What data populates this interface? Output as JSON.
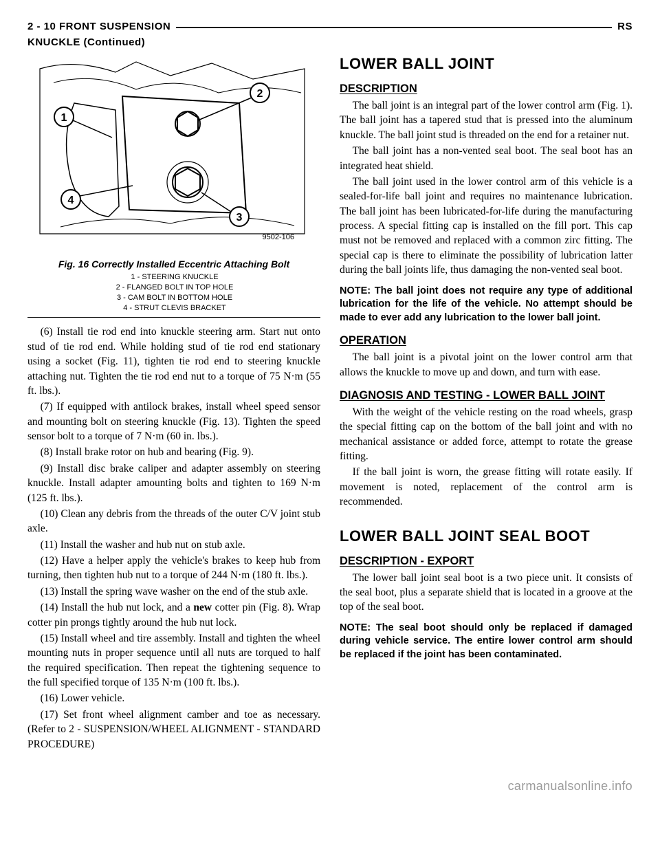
{
  "header": {
    "left": "2 - 10    FRONT SUSPENSION",
    "right": "RS",
    "sub": "KNUCKLE (Continued)"
  },
  "figure": {
    "caption": "Fig. 16 Correctly Installed Eccentric Attaching Bolt",
    "legend": [
      "1 - STEERING KNUCKLE",
      "2 - FLANGED BOLT IN TOP HOLE",
      "3 - CAM BOLT IN BOTTOM HOLE",
      "4 - STRUT CLEVIS BRACKET"
    ],
    "callout_id": "9502-106",
    "labels": {
      "n1": "1",
      "n2": "2",
      "n3": "3",
      "n4": "4"
    }
  },
  "left_steps": [
    "(6) Install tie rod end into knuckle steering arm. Start nut onto stud of tie rod end. While holding stud of tie rod end stationary using a socket (Fig. 11), tighten tie rod end to steering knuckle attaching nut. Tighten the tie rod end nut to a torque of 75 N·m (55 ft. lbs.).",
    "(7) If equipped with antilock brakes, install wheel speed sensor and mounting bolt on steering knuckle (Fig. 13). Tighten the speed sensor bolt to a torque of 7 N·m (60 in. lbs.).",
    "(8) Install brake rotor on hub and bearing (Fig. 9).",
    "(9) Install disc brake caliper and adapter assembly on steering knuckle. Install adapter amounting bolts and tighten to 169 N·m (125 ft. lbs.).",
    "(10) Clean any debris from the threads of the outer C/V joint stub axle.",
    "(11) Install the washer and hub nut on stub axle.",
    "(12) Have a helper apply the vehicle's brakes to keep hub from turning, then tighten hub nut to a torque of 244 N·m (180 ft. lbs.).",
    "(13) Install the spring wave washer on the end of the stub axle.",
    "(14) Install the hub nut lock, and a <b>new</b> cotter pin (Fig. 8). Wrap cotter pin prongs tightly around the hub nut lock.",
    "(15) Install wheel and tire assembly. Install and tighten the wheel mounting nuts in proper sequence until all nuts are torqued to half the required specification. Then repeat the tightening sequence to the full specified torque of 135 N·m (100 ft. lbs.).",
    "(16) Lower vehicle.",
    "(17) Set front wheel alignment camber and toe as necessary. (Refer to 2 - SUSPENSION/WHEEL ALIGNMENT - STANDARD PROCEDURE)"
  ],
  "right": {
    "s1_title": "LOWER BALL JOINT",
    "s1_desc_h": "DESCRIPTION",
    "s1_desc": [
      "The ball joint is an integral part of the lower control arm (Fig. 1). The ball joint has a tapered stud that is pressed into the aluminum knuckle. The ball joint stud is threaded on the end for a retainer nut.",
      "The ball joint has a non-vented seal boot. The seal boot has an integrated heat shield.",
      "The ball joint used in the lower control arm of this vehicle is a sealed-for-life ball joint and requires no maintenance lubrication. The ball joint has been lubricated-for-life during the manufacturing process. A special fitting cap is installed on the fill port. This cap must not be removed and replaced with a common zirc fitting. The special cap is there to eliminate the possibility of lubrication latter during the ball joints life, thus damaging the non-vented seal boot."
    ],
    "s1_note": "NOTE: The ball joint does not require any type of additional lubrication for the life of the vehicle. No attempt should be made to ever add any lubrication to the lower ball joint.",
    "s1_op_h": "OPERATION",
    "s1_op": "The ball joint is a pivotal joint on the lower control arm that allows the knuckle to move up and down, and turn with ease.",
    "s1_diag_h": "DIAGNOSIS AND TESTING - LOWER BALL JOINT",
    "s1_diag": [
      "With the weight of the vehicle resting on the road wheels, grasp the special fitting cap on the bottom of the ball joint and with no mechanical assistance or added force, attempt to rotate the grease fitting.",
      "If the ball joint is worn, the grease fitting will rotate easily. If movement is noted, replacement of the control arm is recommended."
    ],
    "s2_title": "LOWER BALL JOINT SEAL BOOT",
    "s2_desc_h": "DESCRIPTION - EXPORT",
    "s2_desc": "The lower ball joint seal boot is a two piece unit. It consists of the seal boot, plus a separate shield that is located in a groove at the top of the seal boot.",
    "s2_note": "NOTE: The seal boot should only be replaced if damaged during vehicle service. The entire lower control arm should be replaced if the joint has been contaminated."
  },
  "watermark": "carmanualsonline.info"
}
